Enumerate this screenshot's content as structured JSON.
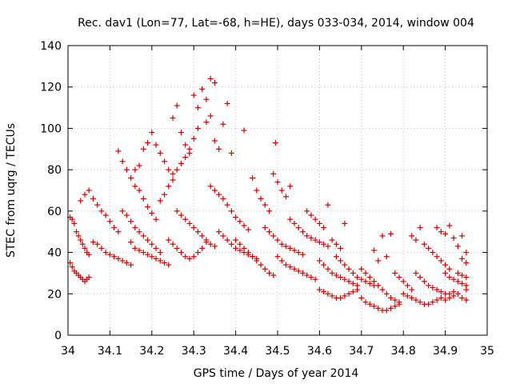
{
  "chart_data": {
    "type": "scatter",
    "title": "Rec. dav1 (Lon=77, Lat=-68, h=HE), days 033-034, 2014, window 004",
    "xlabel": "GPS time / Days of year 2014",
    "ylabel": "STEC from uqrg / TECUs",
    "xlim": [
      34,
      35
    ],
    "ylim": [
      0,
      140
    ],
    "xticks": [
      "34",
      "34.1",
      "34.2",
      "34.3",
      "34.4",
      "34.5",
      "34.6",
      "34.7",
      "34.8",
      "34.9",
      "35"
    ],
    "yticks": [
      "0",
      "20",
      "40",
      "60",
      "80",
      "100",
      "120",
      "140"
    ],
    "grid": true,
    "marker": "+",
    "color": "#d00000",
    "series": [
      {
        "points": [
          [
            34.005,
            57
          ],
          [
            34.01,
            56
          ],
          [
            34.015,
            54
          ],
          [
            34.02,
            50
          ],
          [
            34.025,
            48
          ],
          [
            34.03,
            46
          ],
          [
            34.035,
            44
          ],
          [
            34.04,
            42
          ],
          [
            34.045,
            40
          ],
          [
            34.05,
            39
          ],
          [
            34.005,
            35
          ],
          [
            34.01,
            33
          ],
          [
            34.015,
            31
          ],
          [
            34.02,
            30
          ],
          [
            34.025,
            29
          ],
          [
            34.03,
            28
          ],
          [
            34.035,
            27
          ],
          [
            34.04,
            26
          ],
          [
            34.045,
            27
          ],
          [
            34.05,
            28
          ],
          [
            34.03,
            65
          ],
          [
            34.04,
            68
          ],
          [
            34.05,
            70
          ],
          [
            34.06,
            66
          ],
          [
            34.07,
            63
          ],
          [
            34.08,
            60
          ],
          [
            34.09,
            58
          ],
          [
            34.1,
            55
          ],
          [
            34.11,
            52
          ],
          [
            34.12,
            50
          ],
          [
            34.06,
            45
          ],
          [
            34.07,
            44
          ],
          [
            34.08,
            42
          ],
          [
            34.09,
            40
          ],
          [
            34.1,
            39
          ],
          [
            34.11,
            38
          ],
          [
            34.12,
            37
          ],
          [
            34.13,
            36
          ],
          [
            34.14,
            35
          ],
          [
            34.15,
            34
          ],
          [
            34.12,
            89
          ],
          [
            34.13,
            84
          ],
          [
            34.14,
            80
          ],
          [
            34.15,
            76
          ],
          [
            34.16,
            72
          ],
          [
            34.17,
            70
          ],
          [
            34.18,
            66
          ],
          [
            34.19,
            62
          ],
          [
            34.2,
            59
          ],
          [
            34.21,
            56
          ],
          [
            34.16,
            80
          ],
          [
            34.17,
            82
          ],
          [
            34.18,
            90
          ],
          [
            34.19,
            93
          ],
          [
            34.2,
            98
          ],
          [
            34.21,
            92
          ],
          [
            34.22,
            88
          ],
          [
            34.23,
            84
          ],
          [
            34.24,
            80
          ],
          [
            34.25,
            78
          ],
          [
            34.13,
            60
          ],
          [
            34.14,
            58
          ],
          [
            34.15,
            55
          ],
          [
            34.16,
            52
          ],
          [
            34.17,
            50
          ],
          [
            34.18,
            48
          ],
          [
            34.19,
            46
          ],
          [
            34.2,
            44
          ],
          [
            34.21,
            42
          ],
          [
            34.22,
            40
          ],
          [
            34.15,
            45
          ],
          [
            34.16,
            42
          ],
          [
            34.17,
            41
          ],
          [
            34.18,
            40
          ],
          [
            34.19,
            39
          ],
          [
            34.2,
            38
          ],
          [
            34.21,
            37
          ],
          [
            34.22,
            36
          ],
          [
            34.23,
            35
          ],
          [
            34.24,
            34
          ],
          [
            34.22,
            65
          ],
          [
            34.23,
            68
          ],
          [
            34.24,
            72
          ],
          [
            34.25,
            75
          ],
          [
            34.26,
            80
          ],
          [
            34.27,
            83
          ],
          [
            34.28,
            86
          ],
          [
            34.29,
            90
          ],
          [
            34.3,
            95
          ],
          [
            34.31,
            100
          ],
          [
            34.25,
            105
          ],
          [
            34.26,
            111
          ],
          [
            34.27,
            98
          ],
          [
            34.28,
            92
          ],
          [
            34.29,
            88
          ],
          [
            34.3,
            116
          ],
          [
            34.31,
            110
          ],
          [
            34.32,
            119
          ],
          [
            34.33,
            114
          ],
          [
            34.34,
            124
          ],
          [
            34.35,
            122
          ],
          [
            34.33,
            103
          ],
          [
            34.34,
            106
          ],
          [
            34.35,
            94
          ],
          [
            34.36,
            90
          ],
          [
            34.37,
            102
          ],
          [
            34.38,
            112
          ],
          [
            34.39,
            88
          ],
          [
            34.42,
            99
          ],
          [
            34.495,
            93
          ],
          [
            34.26,
            60
          ],
          [
            34.27,
            58
          ],
          [
            34.28,
            56
          ],
          [
            34.29,
            54
          ],
          [
            34.3,
            52
          ],
          [
            34.31,
            50
          ],
          [
            34.32,
            48
          ],
          [
            34.33,
            46
          ],
          [
            34.34,
            44
          ],
          [
            34.35,
            43
          ],
          [
            34.24,
            46
          ],
          [
            34.25,
            44
          ],
          [
            34.26,
            42
          ],
          [
            34.27,
            40
          ],
          [
            34.28,
            38
          ],
          [
            34.29,
            37
          ],
          [
            34.3,
            38
          ],
          [
            34.31,
            40
          ],
          [
            34.32,
            42
          ],
          [
            34.33,
            45
          ],
          [
            34.34,
            72
          ],
          [
            34.35,
            70
          ],
          [
            34.36,
            68
          ],
          [
            34.37,
            66
          ],
          [
            34.38,
            63
          ],
          [
            34.39,
            60
          ],
          [
            34.4,
            57
          ],
          [
            34.41,
            55
          ],
          [
            34.42,
            53
          ],
          [
            34.43,
            51
          ],
          [
            34.36,
            50
          ],
          [
            34.37,
            48
          ],
          [
            34.38,
            46
          ],
          [
            34.39,
            44
          ],
          [
            34.4,
            42
          ],
          [
            34.41,
            41
          ],
          [
            34.42,
            40
          ],
          [
            34.43,
            39
          ],
          [
            34.44,
            38
          ],
          [
            34.45,
            37
          ],
          [
            34.4,
            46
          ],
          [
            34.41,
            44
          ],
          [
            34.42,
            42
          ],
          [
            34.43,
            40
          ],
          [
            34.44,
            38
          ],
          [
            34.45,
            36
          ],
          [
            34.46,
            34
          ],
          [
            34.47,
            32
          ],
          [
            34.48,
            30
          ],
          [
            34.49,
            29
          ],
          [
            34.44,
            76
          ],
          [
            34.45,
            70
          ],
          [
            34.46,
            66
          ],
          [
            34.47,
            63
          ],
          [
            34.48,
            60
          ],
          [
            34.49,
            78
          ],
          [
            34.5,
            74
          ],
          [
            34.51,
            70
          ],
          [
            34.52,
            67
          ],
          [
            34.53,
            72
          ],
          [
            34.47,
            52
          ],
          [
            34.48,
            50
          ],
          [
            34.49,
            48
          ],
          [
            34.5,
            46
          ],
          [
            34.51,
            44
          ],
          [
            34.52,
            43
          ],
          [
            34.53,
            42
          ],
          [
            34.54,
            41
          ],
          [
            34.55,
            40
          ],
          [
            34.56,
            39
          ],
          [
            34.5,
            38
          ],
          [
            34.51,
            36
          ],
          [
            34.52,
            34
          ],
          [
            34.53,
            33
          ],
          [
            34.54,
            32
          ],
          [
            34.55,
            31
          ],
          [
            34.56,
            30
          ],
          [
            34.57,
            29
          ],
          [
            34.58,
            28
          ],
          [
            34.59,
            27
          ],
          [
            34.53,
            56
          ],
          [
            34.54,
            54
          ],
          [
            34.55,
            52
          ],
          [
            34.56,
            50
          ],
          [
            34.57,
            48
          ],
          [
            34.58,
            47
          ],
          [
            34.59,
            46
          ],
          [
            34.6,
            45
          ],
          [
            34.61,
            44
          ],
          [
            34.62,
            43
          ],
          [
            34.57,
            60
          ],
          [
            34.58,
            58
          ],
          [
            34.59,
            56
          ],
          [
            34.6,
            54
          ],
          [
            34.61,
            52
          ],
          [
            34.62,
            63
          ],
          [
            34.63,
            46
          ],
          [
            34.64,
            44
          ],
          [
            34.65,
            42
          ],
          [
            34.66,
            54
          ],
          [
            34.6,
            36
          ],
          [
            34.61,
            34
          ],
          [
            34.62,
            32
          ],
          [
            34.63,
            30
          ],
          [
            34.64,
            29
          ],
          [
            34.65,
            28
          ],
          [
            34.66,
            27
          ],
          [
            34.67,
            26
          ],
          [
            34.68,
            25
          ],
          [
            34.69,
            24
          ],
          [
            34.6,
            22
          ],
          [
            34.61,
            21
          ],
          [
            34.62,
            20
          ],
          [
            34.63,
            19
          ],
          [
            34.64,
            18
          ],
          [
            34.65,
            18
          ],
          [
            34.66,
            19
          ],
          [
            34.67,
            20
          ],
          [
            34.68,
            21
          ],
          [
            34.69,
            22
          ],
          [
            34.64,
            38
          ],
          [
            34.65,
            36
          ],
          [
            34.66,
            34
          ],
          [
            34.67,
            32
          ],
          [
            34.68,
            30
          ],
          [
            34.69,
            28
          ],
          [
            34.7,
            27
          ],
          [
            34.71,
            26
          ],
          [
            34.72,
            25
          ],
          [
            34.73,
            24
          ],
          [
            34.7,
            32
          ],
          [
            34.71,
            30
          ],
          [
            34.72,
            28
          ],
          [
            34.73,
            26
          ],
          [
            34.74,
            24
          ],
          [
            34.75,
            22
          ],
          [
            34.76,
            20
          ],
          [
            34.77,
            18
          ],
          [
            34.78,
            17
          ],
          [
            34.79,
            16
          ],
          [
            34.7,
            18
          ],
          [
            34.71,
            16
          ],
          [
            34.72,
            15
          ],
          [
            34.73,
            14
          ],
          [
            34.74,
            13
          ],
          [
            34.75,
            12
          ],
          [
            34.76,
            12
          ],
          [
            34.77,
            13
          ],
          [
            34.78,
            14
          ],
          [
            34.79,
            15
          ],
          [
            34.73,
            41
          ],
          [
            34.74,
            36
          ],
          [
            34.75,
            48
          ],
          [
            34.76,
            38
          ],
          [
            34.77,
            49
          ],
          [
            34.78,
            30
          ],
          [
            34.79,
            28
          ],
          [
            34.8,
            26
          ],
          [
            34.81,
            24
          ],
          [
            34.82,
            22
          ],
          [
            34.8,
            20
          ],
          [
            34.81,
            19
          ],
          [
            34.82,
            18
          ],
          [
            34.83,
            17
          ],
          [
            34.84,
            16
          ],
          [
            34.85,
            15
          ],
          [
            34.86,
            15
          ],
          [
            34.87,
            16
          ],
          [
            34.88,
            17
          ],
          [
            34.89,
            18
          ],
          [
            34.82,
            48
          ],
          [
            34.83,
            46
          ],
          [
            34.84,
            52
          ],
          [
            34.85,
            44
          ],
          [
            34.86,
            42
          ],
          [
            34.87,
            40
          ],
          [
            34.88,
            38
          ],
          [
            34.89,
            36
          ],
          [
            34.9,
            34
          ],
          [
            34.91,
            32
          ],
          [
            34.83,
            30
          ],
          [
            34.84,
            28
          ],
          [
            34.85,
            26
          ],
          [
            34.86,
            24
          ],
          [
            34.87,
            23
          ],
          [
            34.88,
            22
          ],
          [
            34.89,
            21
          ],
          [
            34.9,
            20
          ],
          [
            34.91,
            20
          ],
          [
            34.92,
            21
          ],
          [
            34.88,
            52
          ],
          [
            34.89,
            50
          ],
          [
            34.9,
            49
          ],
          [
            34.91,
            53
          ],
          [
            34.92,
            47
          ],
          [
            34.93,
            43
          ],
          [
            34.94,
            48
          ],
          [
            34.95,
            40
          ],
          [
            34.94,
            37
          ],
          [
            34.95,
            35
          ],
          [
            34.9,
            30
          ],
          [
            34.91,
            28
          ],
          [
            34.92,
            27
          ],
          [
            34.93,
            26
          ],
          [
            34.94,
            25
          ],
          [
            34.95,
            24
          ],
          [
            34.93,
            30
          ],
          [
            34.94,
            29
          ],
          [
            34.95,
            28
          ],
          [
            34.95,
            22
          ],
          [
            34.9,
            17
          ],
          [
            34.91,
            18
          ],
          [
            34.92,
            19
          ],
          [
            34.93,
            20
          ],
          [
            34.94,
            18
          ],
          [
            34.95,
            17
          ]
        ]
      }
    ]
  }
}
